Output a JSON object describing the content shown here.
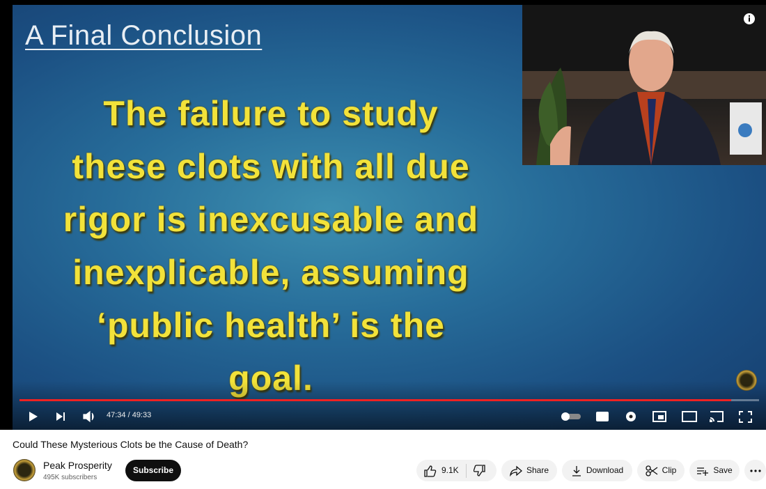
{
  "video": {
    "slide_heading": "A Final Conclusion",
    "slide_lines": [
      "The failure to study",
      "these clots with all due",
      "rigor is inexcusable and",
      "inexplicable, assuming",
      "‘public health’ is the",
      "goal."
    ],
    "time": "47:34 / 49:33",
    "title": "Could These Mysterious Clots be the Cause of Death?"
  },
  "channel": {
    "name": "Peak Prosperity",
    "subscribers": "495K subscribers",
    "subscribe": "Subscribe"
  },
  "actions": {
    "likes": "9.1K",
    "share": "Share",
    "download": "Download",
    "clip": "Clip",
    "save": "Save"
  }
}
